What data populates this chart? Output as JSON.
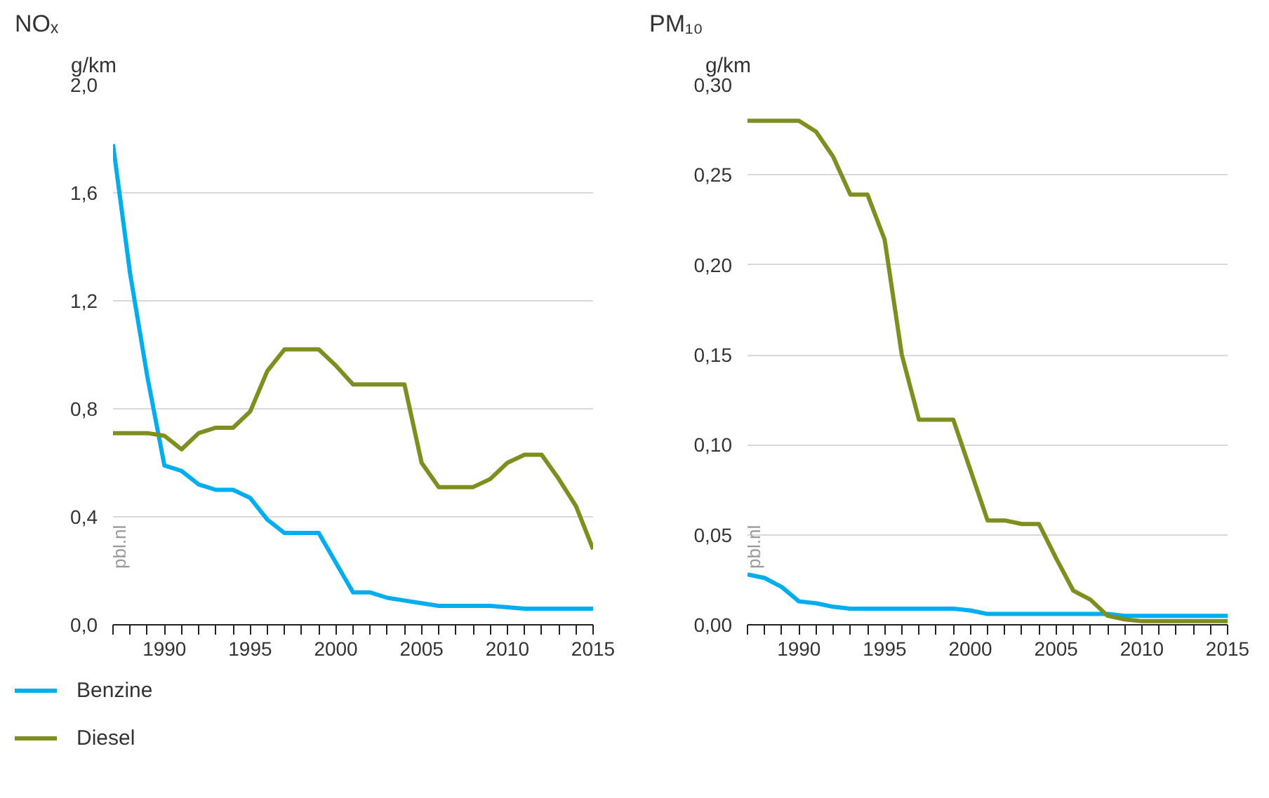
{
  "chart_data": [
    {
      "type": "line",
      "title": "NOₓ",
      "ylabel": "g/km",
      "x": [
        1987,
        1988,
        1989,
        1990,
        1991,
        1992,
        1993,
        1994,
        1995,
        1996,
        1997,
        1998,
        1999,
        2000,
        2001,
        2002,
        2003,
        2004,
        2005,
        2006,
        2007,
        2008,
        2009,
        2010,
        2011,
        2012,
        2013,
        2014,
        2015
      ],
      "series": [
        {
          "name": "Benzine",
          "color": "#00aeef",
          "values": [
            1.78,
            1.3,
            0.92,
            0.59,
            0.57,
            0.52,
            0.5,
            0.5,
            0.47,
            0.39,
            0.34,
            0.34,
            0.34,
            0.23,
            0.12,
            0.12,
            0.1,
            0.09,
            0.08,
            0.07,
            0.07,
            0.07,
            0.07,
            0.065,
            0.06,
            0.06,
            0.06,
            0.06,
            0.06
          ]
        },
        {
          "name": "Diesel",
          "color": "#7f8f1f",
          "values": [
            0.71,
            0.71,
            0.71,
            0.7,
            0.65,
            0.71,
            0.73,
            0.73,
            0.79,
            0.94,
            1.02,
            1.02,
            1.02,
            0.96,
            0.89,
            0.89,
            0.89,
            0.89,
            0.6,
            0.51,
            0.51,
            0.51,
            0.54,
            0.6,
            0.63,
            0.63,
            0.54,
            0.44,
            0.28
          ]
        }
      ],
      "xlim": [
        1987,
        2015
      ],
      "xticks": [
        1990,
        1995,
        2000,
        2005,
        2010,
        2015
      ],
      "ylim": [
        0,
        2.0
      ],
      "yticks": [
        {
          "value": 0,
          "label": "0,0"
        },
        {
          "value": 0.4,
          "label": "0,4"
        },
        {
          "value": 0.8,
          "label": "0,8"
        },
        {
          "value": 1.2,
          "label": "1,2"
        },
        {
          "value": 1.6,
          "label": "1,6"
        },
        {
          "value": 2.0,
          "label": "2,0"
        }
      ],
      "grid": "y",
      "legend": "bottom",
      "annotations": [
        "pbl.nl"
      ]
    },
    {
      "type": "line",
      "title": "PM₁₀",
      "ylabel": "g/km",
      "x": [
        1987,
        1988,
        1989,
        1990,
        1991,
        1992,
        1993,
        1994,
        1995,
        1996,
        1997,
        1998,
        1999,
        2000,
        2001,
        2002,
        2003,
        2004,
        2005,
        2006,
        2007,
        2008,
        2009,
        2010,
        2011,
        2012,
        2013,
        2014,
        2015
      ],
      "series": [
        {
          "color": "#00aeef",
          "values": [
            0.028,
            0.026,
            0.021,
            0.013,
            0.012,
            0.01,
            0.009,
            0.009,
            0.009,
            0.009,
            0.009,
            0.009,
            0.009,
            0.008,
            0.006,
            0.006,
            0.006,
            0.006,
            0.006,
            0.006,
            0.006,
            0.006,
            0.005,
            0.005,
            0.005,
            0.005,
            0.005,
            0.005,
            0.005
          ]
        },
        {
          "color": "#7f8f1f",
          "values": [
            0.28,
            0.28,
            0.28,
            0.28,
            0.274,
            0.26,
            0.239,
            0.239,
            0.214,
            0.15,
            0.114,
            0.114,
            0.114,
            0.086,
            0.058,
            0.058,
            0.056,
            0.056,
            0.037,
            0.019,
            0.014,
            0.005,
            0.003,
            0.002,
            0.002,
            0.002,
            0.002,
            0.002,
            0.002
          ]
        }
      ],
      "xlim": [
        1987,
        2015
      ],
      "xticks": [
        1990,
        1995,
        2000,
        2005,
        2010,
        2015
      ],
      "ylim": [
        0,
        0.3
      ],
      "yticks": [
        {
          "value": 0,
          "label": "0,00"
        },
        {
          "value": 0.05,
          "label": "0,05"
        },
        {
          "value": 0.1,
          "label": "0,10"
        },
        {
          "value": 0.15,
          "label": "0,15"
        },
        {
          "value": 0.2,
          "label": "0,20"
        },
        {
          "value": 0.25,
          "label": "0,25"
        },
        {
          "value": 0.3,
          "label": "0,30"
        }
      ],
      "grid": "y",
      "annotations": [
        "pbl.nl"
      ]
    }
  ]
}
